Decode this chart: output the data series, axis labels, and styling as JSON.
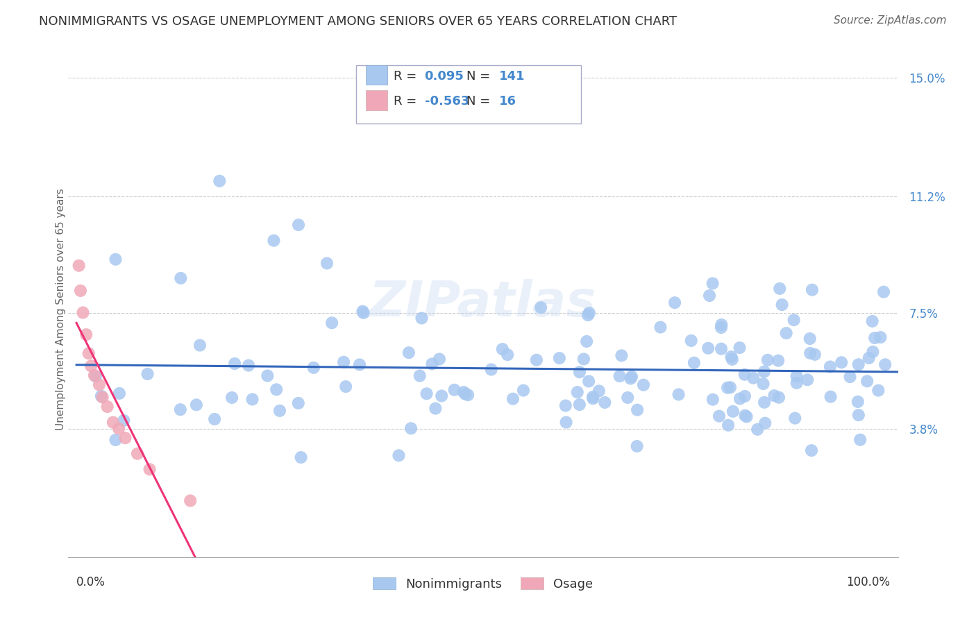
{
  "title": "NONIMMIGRANTS VS OSAGE UNEMPLOYMENT AMONG SENIORS OVER 65 YEARS CORRELATION CHART",
  "source": "Source: ZipAtlas.com",
  "ylabel": "Unemployment Among Seniors over 65 years",
  "legend1_r": "0.095",
  "legend1_n": "141",
  "legend2_r": "-0.563",
  "legend2_n": "16",
  "blue_color": "#a8c8f0",
  "pink_color": "#f0a8b8",
  "trend_blue": "#3366bb",
  "trend_pink": "#ee3377",
  "watermark": "ZIPatlas",
  "text_color": "#333333",
  "tick_color": "#4488cc",
  "ytick_vals": [
    0.0,
    3.8,
    7.5,
    11.2,
    15.0
  ],
  "ytick_labels": [
    "",
    "3.8%",
    "7.5%",
    "11.2%",
    "15.0%"
  ],
  "grid_color": "#cccccc",
  "ylim_min": 0,
  "ylim_max": 15.5,
  "xlim_min": 0,
  "xlim_max": 100
}
